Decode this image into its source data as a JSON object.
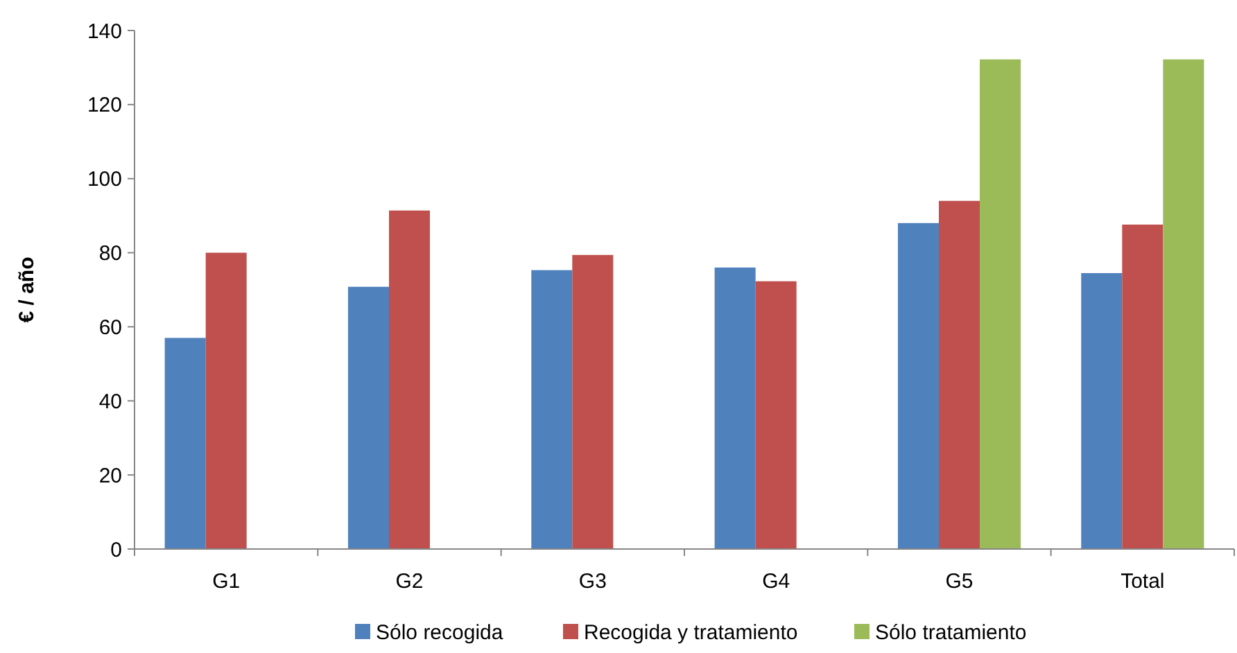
{
  "chart_data": {
    "type": "bar",
    "ylabel": "€ / año",
    "categories": [
      "G1",
      "G2",
      "G3",
      "G4",
      "G5",
      "Total"
    ],
    "series": [
      {
        "name": "Sólo recogida",
        "color": "#4f81bd",
        "values": [
          57,
          70.8,
          75.3,
          76,
          88,
          74.5
        ]
      },
      {
        "name": "Recogida y tratamiento",
        "color": "#c0504d",
        "values": [
          80,
          91.4,
          79.4,
          72.3,
          94,
          87.6
        ]
      },
      {
        "name": "Sólo tratamiento",
        "color": "#9bbb59",
        "values": [
          null,
          null,
          null,
          null,
          132.2,
          132.2
        ]
      }
    ],
    "ylim": [
      0,
      140
    ],
    "yticks": [
      0,
      20,
      40,
      60,
      80,
      100,
      120,
      140
    ],
    "grid": false,
    "legend": "bottom"
  }
}
